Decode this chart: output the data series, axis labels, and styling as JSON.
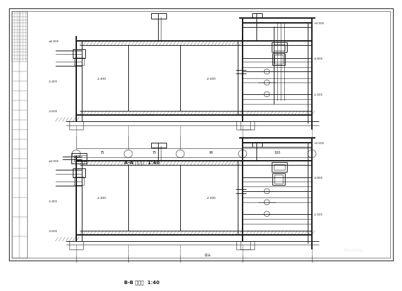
{
  "bg": "#ffffff",
  "lc": "#1a1a1a",
  "lc2": "#444444",
  "title_aa": "A-A 剪面图  1:40",
  "title_bb": "B-B 剪面图  1:40",
  "note": "备注"
}
